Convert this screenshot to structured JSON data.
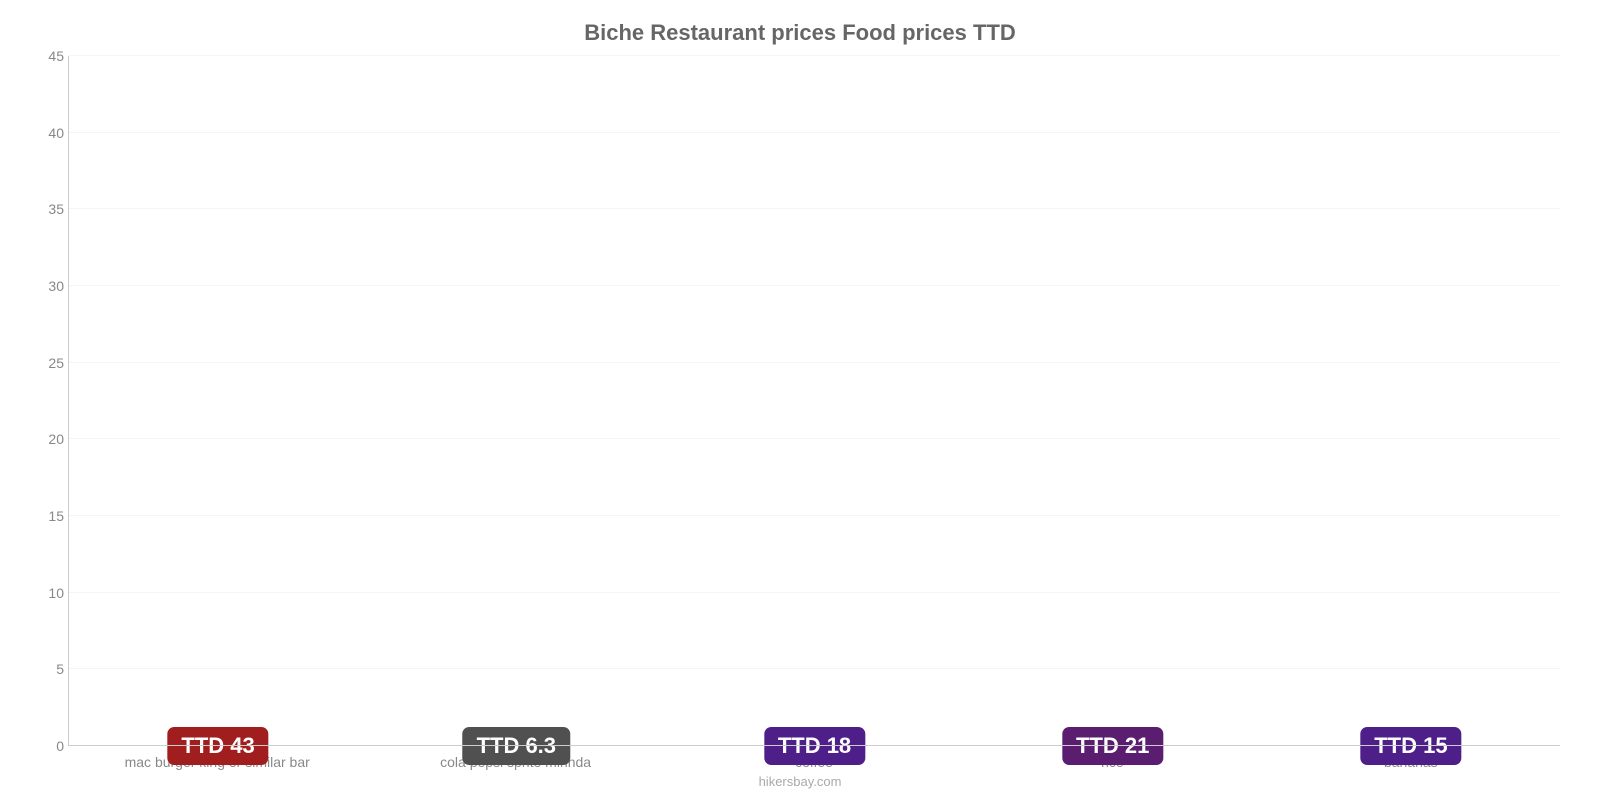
{
  "chart": {
    "type": "bar",
    "title": "Biche Restaurant prices Food prices TTD",
    "title_fontsize": 22,
    "title_color": "#666666",
    "credit": "hikersbay.com",
    "credit_fontsize": 13,
    "credit_color": "#aaaaaa",
    "background_color": "#ffffff",
    "grid_color": "#f5f5f5",
    "axis_line_color": "#cccccc",
    "ylim": [
      0,
      45
    ],
    "ytick_step": 5,
    "ytick_labels": [
      "0",
      "5",
      "10",
      "15",
      "20",
      "25",
      "30",
      "35",
      "40",
      "45"
    ],
    "axis_tick_fontsize": 14,
    "axis_tick_color": "#888888",
    "bar_width_pct": 77,
    "categories": [
      "mac burger king or similar bar",
      "cola pepsi sprite mirinda",
      "coffee",
      "rice",
      "bananas"
    ],
    "values": [
      42.5,
      6.3,
      18,
      21.3,
      14.5
    ],
    "bar_colors": [
      "#ef3b3b",
      "#218cd8",
      "#8239e5",
      "#bc3de0",
      "#8239e5"
    ],
    "bar_label_bg": [
      "#a01e1e",
      "#505050",
      "#4e1f89",
      "#5a1d6f",
      "#4e1f89"
    ],
    "value_labels": [
      "TTD 43",
      "TTD 6.3",
      "TTD 18",
      "TTD 21",
      "TTD 15"
    ],
    "value_label_fontsize": 22,
    "value_label_color": "#ffffff"
  }
}
